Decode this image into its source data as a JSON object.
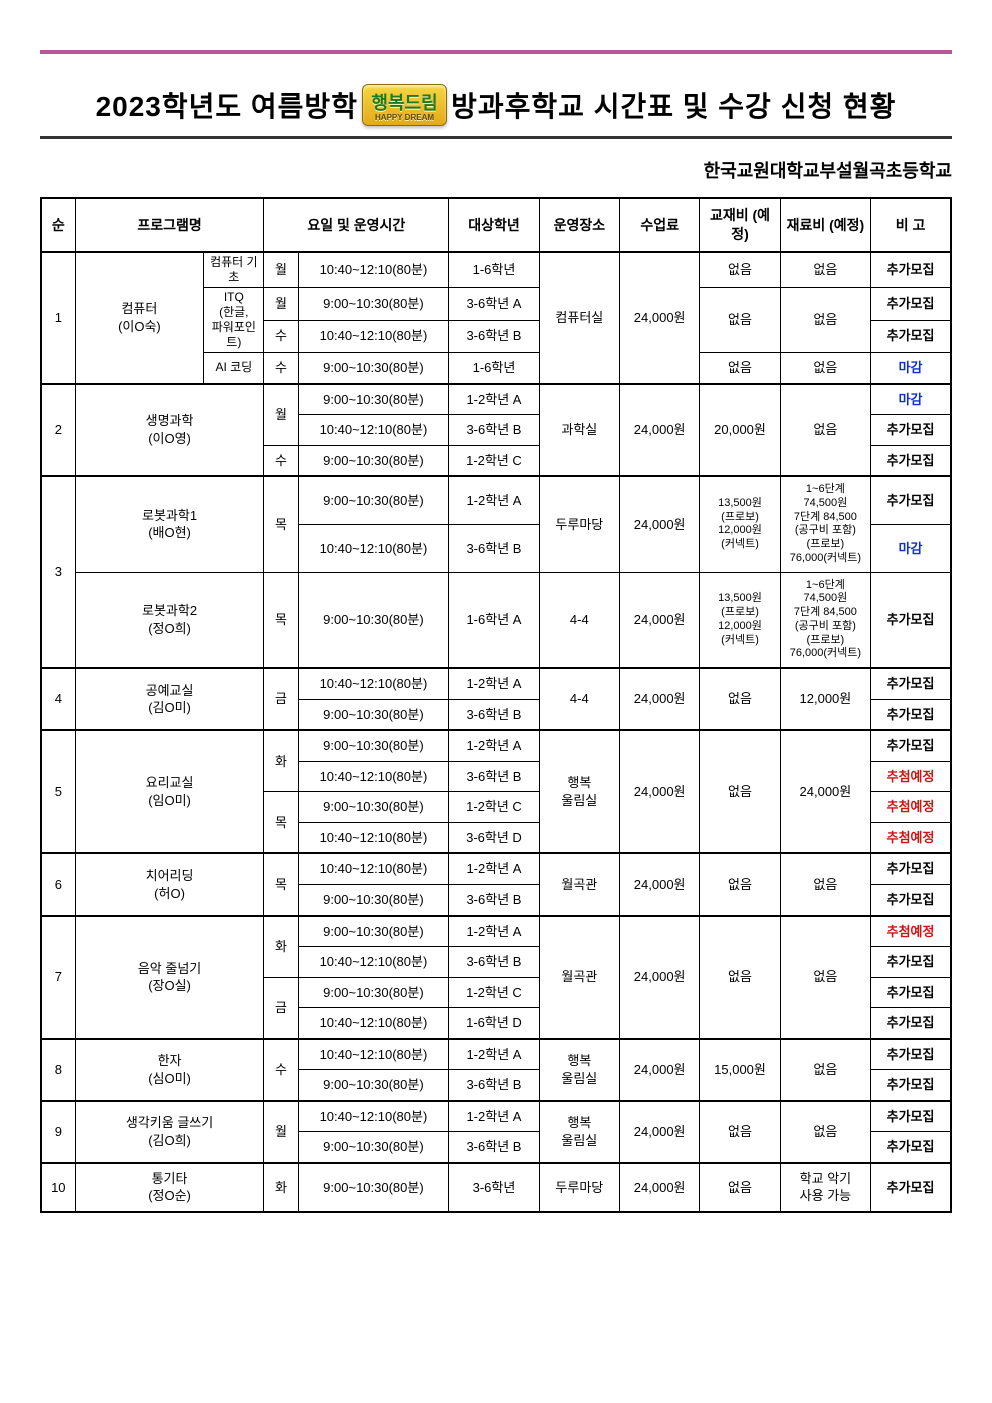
{
  "title_prefix": "2023학년도 여름방학",
  "title_badge": "행복드림",
  "title_badge_sub": "HAPPY DREAM",
  "title_suffix": "방과후학교 시간표 및 수강 신청 현황",
  "school": "한국교원대학교부설월곡초등학교",
  "columns": {
    "no": "순",
    "program": "프로그램명",
    "dayTime": "요일 및 운영시간",
    "grade": "대상학년",
    "location": "운영장소",
    "fee": "수업료",
    "book": "교재비\n(예정)",
    "material": "재료비\n(예정)",
    "note": "비 고"
  },
  "status": {
    "add": "추가모집",
    "closed": "마감",
    "lottery": "추첨예정"
  },
  "colors": {
    "accent": "#b85898",
    "blue": "#1030cc",
    "red": "#d11313",
    "border": "#000000"
  },
  "rows": [
    {
      "no": "1",
      "progMain": "컴퓨터\n(이O숙)",
      "subs": [
        {
          "sub": "컴퓨터 기초",
          "day": "월",
          "time": "10:40~12:10(80분)",
          "grade": "1-6학년",
          "book": "없음",
          "material": "없음",
          "note": "add"
        },
        {
          "sub": "ITQ\n(한글,\n파워포인트)",
          "day": "월",
          "time": "9:00~10:30(80분)",
          "grade": "3-6학년 A",
          "book": "없음",
          "material": "없음",
          "note": "add"
        },
        {
          "sub": "",
          "day": "수",
          "time": "10:40~12:10(80분)",
          "grade": "3-6학년 B",
          "book": "",
          "material": "",
          "note": "add"
        },
        {
          "sub": "AI 코딩",
          "day": "수",
          "time": "9:00~10:30(80분)",
          "grade": "1-6학년",
          "book": "없음",
          "material": "없음",
          "note": "closed"
        }
      ],
      "location": "컴퓨터실",
      "fee": "24,000원"
    },
    {
      "no": "2",
      "progMain": "생명과학\n(이O영)",
      "rowsDetail": [
        {
          "day": "월",
          "time": "9:00~10:30(80분)",
          "grade": "1-2학년 A",
          "note": "closed"
        },
        {
          "day": "",
          "time": "10:40~12:10(80분)",
          "grade": "3-6학년 B",
          "note": "add"
        },
        {
          "day": "수",
          "time": "9:00~10:30(80분)",
          "grade": "1-2학년 C",
          "note": "add"
        }
      ],
      "location": "과학실",
      "fee": "24,000원",
      "book": "20,000원",
      "material": "없음"
    },
    {
      "no": "3",
      "groups": [
        {
          "progMain": "로봇과학1\n(배O현)",
          "day": "목",
          "rows": [
            {
              "time": "9:00~10:30(80분)",
              "grade": "1-2학년 A",
              "note": "add"
            },
            {
              "time": "10:40~12:10(80분)",
              "grade": "3-6학년 B",
              "note": "closed"
            }
          ],
          "location": "두루마당",
          "fee": "24,000원",
          "book": "13,500원\n(프로보)\n12,000원\n(커넥트)",
          "material": "1~6단계\n74,500원\n7단계 84,500\n(공구비 포함)\n(프로보)\n76,000(커넥트)"
        },
        {
          "progMain": "로봇과학2\n(정O희)",
          "day": "목",
          "rows": [
            {
              "time": "9:00~10:30(80분)",
              "grade": "1-6학년 A",
              "note": "add"
            }
          ],
          "location": "4-4",
          "fee": "24,000원",
          "book": "13,500원\n(프로보)\n12,000원\n(커넥트)",
          "material": "1~6단계\n74,500원\n7단계 84,500\n(공구비 포함)\n(프로보)\n76,000(커넥트)"
        }
      ]
    },
    {
      "no": "4",
      "progMain": "공예교실\n(김O미)",
      "day": "금",
      "rows": [
        {
          "time": "10:40~12:10(80분)",
          "grade": "1-2학년 A",
          "note": "add"
        },
        {
          "time": "9:00~10:30(80분)",
          "grade": "3-6학년 B",
          "note": "add"
        }
      ],
      "location": "4-4",
      "fee": "24,000원",
      "book": "없음",
      "material": "12,000원"
    },
    {
      "no": "5",
      "progMain": "요리교실\n(임O미)",
      "days": [
        {
          "day": "화",
          "rows": [
            {
              "time": "9:00~10:30(80분)",
              "grade": "1-2학년 A",
              "note": "add"
            },
            {
              "time": "10:40~12:10(80분)",
              "grade": "3-6학년 B",
              "note": "lottery"
            }
          ]
        },
        {
          "day": "목",
          "rows": [
            {
              "time": "9:00~10:30(80분)",
              "grade": "1-2학년 C",
              "note": "lottery"
            },
            {
              "time": "10:40~12:10(80분)",
              "grade": "3-6학년 D",
              "note": "lottery"
            }
          ]
        }
      ],
      "location": "행복\n울림실",
      "fee": "24,000원",
      "book": "없음",
      "material": "24,000원"
    },
    {
      "no": "6",
      "progMain": "치어리딩\n(허O)",
      "day": "목",
      "rows": [
        {
          "time": "10:40~12:10(80분)",
          "grade": "1-2학년 A",
          "note": "add"
        },
        {
          "time": "9:00~10:30(80분)",
          "grade": "3-6학년 B",
          "note": "add"
        }
      ],
      "location": "월곡관",
      "fee": "24,000원",
      "book": "없음",
      "material": "없음"
    },
    {
      "no": "7",
      "progMain": "음악 줄넘기\n(장O실)",
      "days": [
        {
          "day": "화",
          "rows": [
            {
              "time": "9:00~10:30(80분)",
              "grade": "1-2학년 A",
              "note": "lottery"
            },
            {
              "time": "10:40~12:10(80분)",
              "grade": "3-6학년 B",
              "note": "add"
            }
          ]
        },
        {
          "day": "금",
          "rows": [
            {
              "time": "9:00~10:30(80분)",
              "grade": "1-2학년 C",
              "note": "add"
            },
            {
              "time": "10:40~12:10(80분)",
              "grade": "1-6학년 D",
              "note": "add"
            }
          ]
        }
      ],
      "location": "월곡관",
      "fee": "24,000원",
      "book": "없음",
      "material": "없음"
    },
    {
      "no": "8",
      "progMain": "한자\n(심O미)",
      "day": "수",
      "rows": [
        {
          "time": "10:40~12:10(80분)",
          "grade": "1-2학년 A",
          "note": "add"
        },
        {
          "time": "9:00~10:30(80분)",
          "grade": "3-6학년 B",
          "note": "add"
        }
      ],
      "location": "행복\n울림실",
      "fee": "24,000원",
      "book": "15,000원",
      "material": "없음"
    },
    {
      "no": "9",
      "progMain": "생각키움 글쓰기\n(김O희)",
      "day": "월",
      "rows": [
        {
          "time": "10:40~12:10(80분)",
          "grade": "1-2학년 A",
          "note": "add"
        },
        {
          "time": "9:00~10:30(80분)",
          "grade": "3-6학년 B",
          "note": "add"
        }
      ],
      "location": "행복\n울림실",
      "fee": "24,000원",
      "book": "없음",
      "material": "없음"
    },
    {
      "no": "10",
      "progMain": "통기타\n(정O순)",
      "day": "화",
      "rows": [
        {
          "time": "9:00~10:30(80분)",
          "grade": "3-6학년",
          "note": "add"
        }
      ],
      "location": "두루마당",
      "fee": "24,000원",
      "book": "없음",
      "material": "학교 악기\n사용 가능"
    }
  ]
}
